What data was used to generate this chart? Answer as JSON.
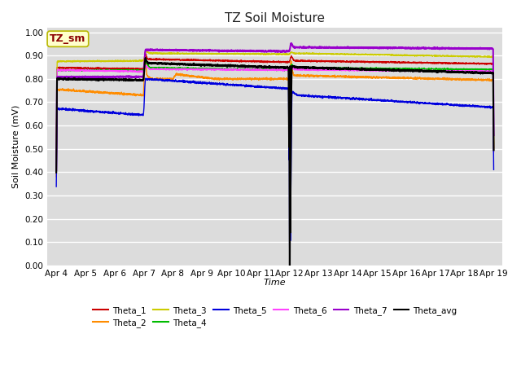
{
  "title": "TZ Soil Moisture",
  "ylabel": "Soil Moisture (mV)",
  "xlabel": "Time",
  "annotation": "TZ_sm",
  "ylim": [
    0.0,
    1.02
  ],
  "yticks": [
    0.0,
    0.1,
    0.2,
    0.3,
    0.4,
    0.5,
    0.6,
    0.7,
    0.8,
    0.9,
    1.0
  ],
  "bg_color": "#dcdcdc",
  "fig_bg": "#ffffff",
  "legend_row1": [
    "Theta_1",
    "Theta_2",
    "Theta_3",
    "Theta_4",
    "Theta_5",
    "Theta_6"
  ],
  "legend_row2": [
    "Theta_7",
    "Theta_avg"
  ],
  "series": {
    "Theta_1": {
      "color": "#cc0000",
      "lw": 1.0
    },
    "Theta_2": {
      "color": "#ff8c00",
      "lw": 1.0
    },
    "Theta_3": {
      "color": "#cccc00",
      "lw": 1.0
    },
    "Theta_4": {
      "color": "#00bb00",
      "lw": 1.0
    },
    "Theta_5": {
      "color": "#0000dd",
      "lw": 1.0
    },
    "Theta_6": {
      "color": "#ff44ff",
      "lw": 1.0
    },
    "Theta_7": {
      "color": "#9900cc",
      "lw": 1.5
    },
    "Theta_avg": {
      "color": "#000000",
      "lw": 1.5
    }
  }
}
